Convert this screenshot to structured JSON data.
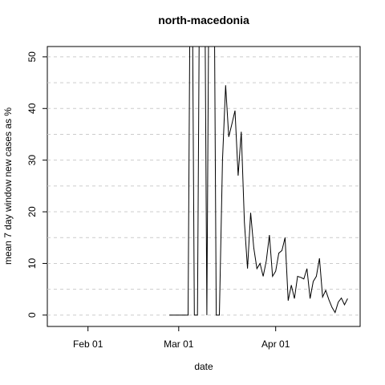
{
  "chart_data": {
    "type": "line",
    "title": "north-macedonia",
    "xlabel": "date",
    "ylabel": "mean  7  day window new cases as %",
    "x": [
      "Feb 27",
      "Feb 28",
      "Feb 29",
      "Mar 01",
      "Mar 02",
      "Mar 03",
      "Mar 04",
      "Mar 05",
      "Mar 06",
      "Mar 07",
      "Mar 08",
      "Mar 09",
      "Mar 10",
      "Mar 11",
      "Mar 12",
      "Mar 13",
      "Mar 14",
      "Mar 15",
      "Mar 16",
      "Mar 17",
      "Mar 18",
      "Mar 19",
      "Mar 20",
      "Mar 21",
      "Mar 22",
      "Mar 23",
      "Mar 24",
      "Mar 25",
      "Mar 26",
      "Mar 27",
      "Mar 28",
      "Mar 29",
      "Mar 30",
      "Mar 31",
      "Apr 01",
      "Apr 02",
      "Apr 03",
      "Apr 04",
      "Apr 05",
      "Apr 06",
      "Apr 07",
      "Apr 08",
      "Apr 09",
      "Apr 10",
      "Apr 11",
      "Apr 12",
      "Apr 13",
      "Apr 14",
      "Apr 15",
      "Apr 16",
      "Apr 17",
      "Apr 18",
      "Apr 19",
      "Apr 20",
      "Apr 21",
      "Apr 22",
      "Apr 23",
      "Apr 24"
    ],
    "series": [
      {
        "name": "north-macedonia",
        "color": "#000000",
        "values": [
          0,
          0,
          0,
          0,
          0,
          0,
          0,
          100,
          0,
          0,
          100,
          100,
          0,
          100,
          100,
          0,
          0,
          30,
          44.5,
          34.5,
          37,
          39.6,
          27,
          35.5,
          18,
          9,
          19.8,
          13,
          9,
          10,
          7.5,
          10.5,
          15.5,
          7.5,
          8.5,
          12,
          12.5,
          15,
          2.8,
          5.8,
          3.2,
          7.5,
          7.3,
          7,
          9,
          3.2,
          6.5,
          7.5,
          11,
          3.5,
          4.8,
          3,
          1.5,
          0.5,
          2.5,
          3.3,
          2,
          3.2
        ]
      }
    ],
    "xlim": [
      "Jan 19",
      "Apr 28"
    ],
    "xticks": [
      "Feb 01",
      "Mar 01",
      "Apr 01"
    ],
    "ylim": [
      -2.2,
      52
    ],
    "yticks": [
      0,
      10,
      20,
      30,
      40,
      50
    ],
    "ygrid": [
      0,
      5,
      10,
      15,
      20,
      25,
      30,
      35,
      40,
      45,
      50
    ],
    "grid": true
  }
}
